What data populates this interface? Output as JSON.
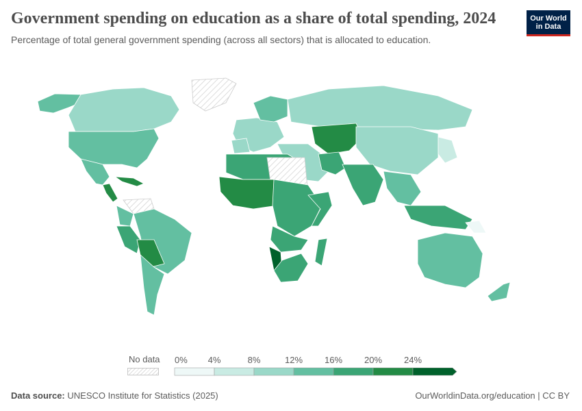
{
  "header": {
    "title": "Government spending on education as a share of total spending, 2024",
    "subtitle": "Percentage of total general government spending (across all sectors) that is allocated to education."
  },
  "logo": {
    "line1": "Our World",
    "line2": "in Data"
  },
  "legend": {
    "no_data_label": "No data",
    "ticks": [
      "0%",
      "4%",
      "8%",
      "12%",
      "16%",
      "20%",
      "24%"
    ],
    "colors": [
      "#eef8f7",
      "#c9ebe3",
      "#9ad8c8",
      "#63bfa1",
      "#3ba575",
      "#238b45",
      "#00612b"
    ]
  },
  "footer": {
    "source_label": "Data source:",
    "source_text": "UNESCO Institute for Statistics (2025)",
    "link": "OurWorldinData.org/education | CC BY"
  },
  "colors": {
    "no_data_hatch": "#dcdcdc",
    "border": "#ffffff"
  },
  "map_regions": [
    {
      "name": "greenland",
      "color": "nodata",
      "pts": [
        [
          280,
          117
        ],
        [
          330,
          114
        ],
        [
          345,
          122
        ],
        [
          330,
          150
        ],
        [
          300,
          162
        ],
        [
          282,
          150
        ]
      ]
    },
    {
      "name": "alaska",
      "color": 3,
      "pts": [
        [
          55,
          148
        ],
        [
          80,
          137
        ],
        [
          118,
          138
        ],
        [
          122,
          148
        ],
        [
          100,
          157
        ],
        [
          78,
          165
        ],
        [
          58,
          162
        ]
      ]
    },
    {
      "name": "canada",
      "color": 2,
      "pts": [
        [
          118,
          138
        ],
        [
          165,
          130
        ],
        [
          210,
          128
        ],
        [
          250,
          140
        ],
        [
          262,
          160
        ],
        [
          250,
          178
        ],
        [
          225,
          188
        ],
        [
          195,
          192
        ],
        [
          150,
          192
        ],
        [
          110,
          192
        ],
        [
          100,
          168
        ]
      ]
    },
    {
      "name": "usa",
      "color": 3,
      "pts": [
        [
          100,
          192
        ],
        [
          150,
          192
        ],
        [
          195,
          192
        ],
        [
          225,
          188
        ],
        [
          232,
          202
        ],
        [
          215,
          232
        ],
        [
          200,
          245
        ],
        [
          178,
          240
        ],
        [
          150,
          240
        ],
        [
          118,
          232
        ],
        [
          100,
          215
        ]
      ]
    },
    {
      "name": "mexico",
      "color": 3,
      "pts": [
        [
          118,
          232
        ],
        [
          150,
          240
        ],
        [
          160,
          258
        ],
        [
          150,
          270
        ],
        [
          140,
          268
        ],
        [
          126,
          250
        ]
      ]
    },
    {
      "name": "central-america",
      "color": 5,
      "pts": [
        [
          150,
          270
        ],
        [
          160,
          268
        ],
        [
          172,
          290
        ],
        [
          165,
          295
        ],
        [
          155,
          282
        ]
      ]
    },
    {
      "name": "cuba-caribbean",
      "color": 5,
      "pts": [
        [
          168,
          258
        ],
        [
          195,
          260
        ],
        [
          210,
          268
        ],
        [
          200,
          272
        ],
        [
          178,
          265
        ]
      ]
    },
    {
      "name": "venezuela",
      "color": "nodata",
      "pts": [
        [
          180,
          292
        ],
        [
          220,
          290
        ],
        [
          225,
          305
        ],
        [
          195,
          312
        ]
      ]
    },
    {
      "name": "colombia",
      "color": 3,
      "pts": [
        [
          170,
          300
        ],
        [
          195,
          312
        ],
        [
          190,
          330
        ],
        [
          175,
          328
        ]
      ]
    },
    {
      "name": "peru-ecuador",
      "color": 4,
      "pts": [
        [
          170,
          330
        ],
        [
          190,
          330
        ],
        [
          205,
          350
        ],
        [
          200,
          370
        ],
        [
          182,
          360
        ]
      ]
    },
    {
      "name": "brazil",
      "color": 3,
      "pts": [
        [
          195,
          312
        ],
        [
          225,
          305
        ],
        [
          255,
          320
        ],
        [
          280,
          340
        ],
        [
          270,
          380
        ],
        [
          245,
          400
        ],
        [
          225,
          390
        ],
        [
          210,
          370
        ],
        [
          205,
          345
        ]
      ]
    },
    {
      "name": "bolivia-paraguay",
      "color": 5,
      "pts": [
        [
          200,
          350
        ],
        [
          225,
          350
        ],
        [
          240,
          385
        ],
        [
          220,
          390
        ],
        [
          205,
          372
        ]
      ]
    },
    {
      "name": "argentina-chile",
      "color": 3,
      "pts": [
        [
          205,
          372
        ],
        [
          225,
          390
        ],
        [
          240,
          400
        ],
        [
          230,
          430
        ],
        [
          225,
          460
        ],
        [
          215,
          455
        ],
        [
          210,
          420
        ]
      ]
    },
    {
      "name": "europe-west",
      "color": 2,
      "pts": [
        [
          345,
          175
        ],
        [
          375,
          172
        ],
        [
          405,
          178
        ],
        [
          415,
          200
        ],
        [
          395,
          215
        ],
        [
          370,
          222
        ],
        [
          348,
          212
        ],
        [
          340,
          195
        ]
      ]
    },
    {
      "name": "scandinavia",
      "color": 3,
      "pts": [
        [
          370,
          150
        ],
        [
          395,
          140
        ],
        [
          420,
          145
        ],
        [
          420,
          170
        ],
        [
          400,
          178
        ],
        [
          380,
          175
        ]
      ]
    },
    {
      "name": "iberia",
      "color": 2,
      "pts": [
        [
          338,
          205
        ],
        [
          360,
          202
        ],
        [
          365,
          222
        ],
        [
          342,
          224
        ]
      ]
    },
    {
      "name": "russia",
      "color": 2,
      "pts": [
        [
          420,
          145
        ],
        [
          480,
          130
        ],
        [
          560,
          125
        ],
        [
          640,
          140
        ],
        [
          690,
          160
        ],
        [
          680,
          185
        ],
        [
          640,
          190
        ],
        [
          580,
          188
        ],
        [
          520,
          185
        ],
        [
          470,
          185
        ],
        [
          425,
          178
        ]
      ]
    },
    {
      "name": "turkey-middle-east",
      "color": 2,
      "pts": [
        [
          405,
          210
        ],
        [
          450,
          210
        ],
        [
          470,
          225
        ],
        [
          480,
          250
        ],
        [
          465,
          265
        ],
        [
          440,
          262
        ],
        [
          420,
          240
        ]
      ]
    },
    {
      "name": "central-asia",
      "color": 5,
      "pts": [
        [
          455,
          185
        ],
        [
          520,
          180
        ],
        [
          530,
          200
        ],
        [
          510,
          220
        ],
        [
          480,
          225
        ],
        [
          460,
          210
        ]
      ]
    },
    {
      "name": "iran",
      "color": 4,
      "pts": [
        [
          465,
          225
        ],
        [
          495,
          222
        ],
        [
          505,
          245
        ],
        [
          490,
          255
        ],
        [
          470,
          248
        ]
      ]
    },
    {
      "name": "china-mongolia",
      "color": 2,
      "pts": [
        [
          520,
          185
        ],
        [
          600,
          185
        ],
        [
          640,
          195
        ],
        [
          640,
          230
        ],
        [
          610,
          255
        ],
        [
          570,
          250
        ],
        [
          540,
          240
        ],
        [
          520,
          215
        ]
      ]
    },
    {
      "name": "japan-korea",
      "color": 1,
      "pts": [
        [
          640,
          200
        ],
        [
          660,
          205
        ],
        [
          668,
          230
        ],
        [
          650,
          238
        ],
        [
          640,
          225
        ]
      ]
    },
    {
      "name": "india-south-asia",
      "color": 4,
      "pts": [
        [
          500,
          240
        ],
        [
          545,
          240
        ],
        [
          560,
          262
        ],
        [
          548,
          295
        ],
        [
          530,
          300
        ],
        [
          515,
          275
        ]
      ]
    },
    {
      "name": "southeast-asia",
      "color": 3,
      "pts": [
        [
          560,
          250
        ],
        [
          600,
          255
        ],
        [
          615,
          280
        ],
        [
          600,
          300
        ],
        [
          580,
          295
        ],
        [
          565,
          275
        ]
      ]
    },
    {
      "name": "indonesia-philippines",
      "color": 4,
      "pts": [
        [
          590,
          300
        ],
        [
          650,
          300
        ],
        [
          690,
          320
        ],
        [
          680,
          335
        ],
        [
          630,
          330
        ],
        [
          600,
          320
        ]
      ]
    },
    {
      "name": "north-africa",
      "color": 4,
      "pts": [
        [
          330,
          225
        ],
        [
          360,
          225
        ],
        [
          420,
          225
        ],
        [
          445,
          240
        ],
        [
          445,
          262
        ],
        [
          400,
          262
        ],
        [
          355,
          262
        ],
        [
          330,
          252
        ]
      ]
    },
    {
      "name": "sahara-libya-egypt",
      "color": "nodata",
      "pts": [
        [
          390,
          230
        ],
        [
          445,
          230
        ],
        [
          450,
          285
        ],
        [
          420,
          288
        ],
        [
          395,
          265
        ]
      ]
    },
    {
      "name": "west-africa",
      "color": 5,
      "pts": [
        [
          320,
          258
        ],
        [
          355,
          262
        ],
        [
          400,
          262
        ],
        [
          405,
          300
        ],
        [
          370,
          305
        ],
        [
          340,
          300
        ],
        [
          322,
          280
        ]
      ]
    },
    {
      "name": "central-africa",
      "color": 4,
      "pts": [
        [
          400,
          262
        ],
        [
          450,
          270
        ],
        [
          470,
          300
        ],
        [
          455,
          330
        ],
        [
          430,
          345
        ],
        [
          405,
          330
        ],
        [
          398,
          300
        ]
      ]
    },
    {
      "name": "east-africa",
      "color": 4,
      "pts": [
        [
          450,
          285
        ],
        [
          480,
          280
        ],
        [
          485,
          300
        ],
        [
          465,
          330
        ],
        [
          455,
          330
        ],
        [
          468,
          305
        ]
      ]
    },
    {
      "name": "angola-zambia",
      "color": 4,
      "pts": [
        [
          398,
          330
        ],
        [
          430,
          345
        ],
        [
          450,
          350
        ],
        [
          440,
          365
        ],
        [
          410,
          368
        ],
        [
          395,
          350
        ]
      ]
    },
    {
      "name": "namibia",
      "color": 6,
      "pts": [
        [
          393,
          360
        ],
        [
          410,
          368
        ],
        [
          412,
          395
        ],
        [
          400,
          395
        ]
      ]
    },
    {
      "name": "south-africa",
      "color": 4,
      "pts": [
        [
          400,
          395
        ],
        [
          412,
          380
        ],
        [
          440,
          370
        ],
        [
          450,
          385
        ],
        [
          435,
          410
        ],
        [
          410,
          412
        ]
      ]
    },
    {
      "name": "madagascar",
      "color": 4,
      "pts": [
        [
          465,
          350
        ],
        [
          478,
          348
        ],
        [
          470,
          388
        ],
        [
          460,
          382
        ]
      ]
    },
    {
      "name": "australia",
      "color": 3,
      "pts": [
        [
          610,
          350
        ],
        [
          650,
          340
        ],
        [
          690,
          345
        ],
        [
          705,
          370
        ],
        [
          700,
          405
        ],
        [
          680,
          420
        ],
        [
          650,
          415
        ],
        [
          620,
          405
        ],
        [
          610,
          385
        ]
      ]
    },
    {
      "name": "new-zealand",
      "color": 3,
      "pts": [
        [
          735,
          415
        ],
        [
          745,
          412
        ],
        [
          740,
          435
        ],
        [
          718,
          440
        ],
        [
          712,
          432
        ]
      ]
    },
    {
      "name": "papua",
      "color": 0,
      "pts": [
        [
          680,
          325
        ],
        [
          700,
          322
        ],
        [
          710,
          340
        ],
        [
          692,
          340
        ]
      ]
    }
  ]
}
